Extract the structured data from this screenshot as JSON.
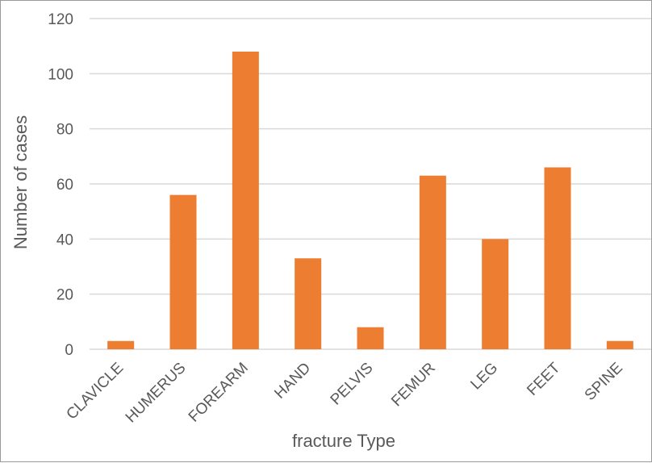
{
  "chart_data": {
    "type": "bar",
    "title": "",
    "xlabel": "fracture Type",
    "ylabel": "Number of cases",
    "categories": [
      "CLAVICLE",
      "HUMERUS",
      "FOREARM",
      "HAND",
      "PELVIS",
      "FEMUR",
      "LEG",
      "FEET",
      "SPINE"
    ],
    "values": [
      3,
      56,
      108,
      33,
      8,
      63,
      40,
      66,
      3
    ],
    "ylim": [
      0,
      120
    ],
    "yticks": [
      0,
      20,
      40,
      60,
      80,
      100,
      120
    ],
    "grid": true,
    "legend": "none",
    "bar_color": "#ed7d31",
    "grid_color": "#d9d9d9",
    "text_color": "#595959"
  }
}
